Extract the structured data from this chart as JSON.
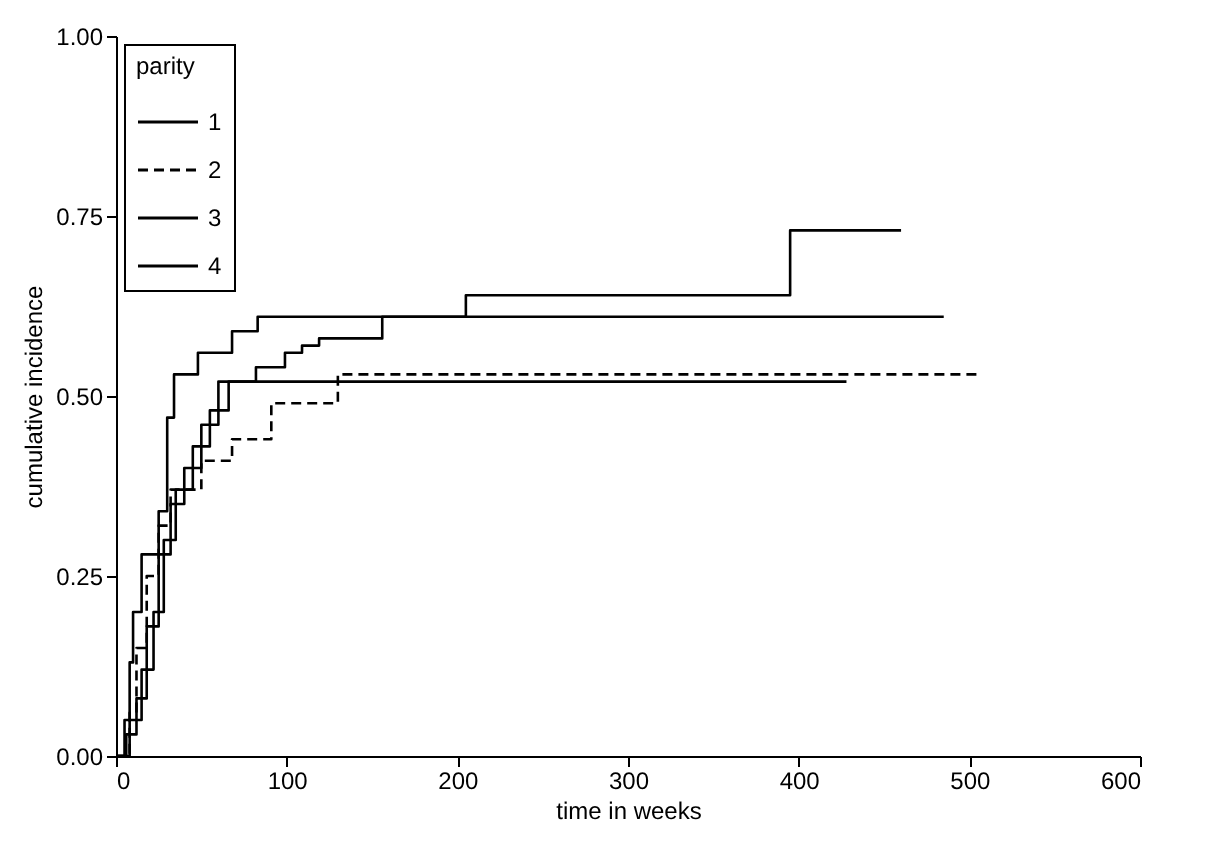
{
  "chart_data": {
    "type": "step",
    "xlabel": "time in weeks",
    "ylabel": "cumulative incidence",
    "legend_title": "parity",
    "legend": "top left",
    "grid": false,
    "xlim": [
      0,
      600
    ],
    "xticks": [
      0,
      100,
      200,
      300,
      400,
      500,
      600
    ],
    "ylim": [
      0,
      1
    ],
    "yticks": [
      {
        "value": 0,
        "label": "0.00"
      },
      {
        "value": 0.25,
        "label": "0.25"
      },
      {
        "value": 0.5,
        "label": "0.50"
      },
      {
        "value": 0.75,
        "label": "0.75"
      },
      {
        "value": 1,
        "label": "1.00"
      }
    ],
    "series": [
      {
        "name": "1",
        "color": "#000000",
        "line_style": "solid",
        "x": [
          0,
          5,
          8,
          10,
          15,
          25,
          30,
          34,
          48,
          68,
          83,
          485
        ],
        "values": [
          0,
          0.05,
          0.13,
          0.2,
          0.28,
          0.34,
          0.47,
          0.53,
          0.56,
          0.59,
          0.61,
          0.61
        ]
      },
      {
        "name": "2",
        "color": "#000000",
        "line_style": "dashed",
        "x": [
          0,
          8,
          12,
          18,
          25,
          32,
          50,
          68,
          91,
          130,
          505
        ],
        "values": [
          0,
          0.06,
          0.15,
          0.25,
          0.32,
          0.37,
          0.41,
          0.44,
          0.49,
          0.53,
          0.53
        ]
      },
      {
        "name": "3",
        "color": "#000000",
        "line_style": "solid",
        "x": [
          0,
          8,
          15,
          22,
          28,
          35,
          45,
          55,
          66,
          82,
          99,
          109,
          119,
          156,
          205,
          395,
          460
        ],
        "values": [
          0,
          0.05,
          0.12,
          0.2,
          0.3,
          0.37,
          0.43,
          0.48,
          0.52,
          0.54,
          0.56,
          0.57,
          0.58,
          0.61,
          0.64,
          0.73,
          0.73
        ]
      },
      {
        "name": "4",
        "color": "#000000",
        "line_style": "solid",
        "x": [
          0,
          6,
          12,
          18,
          25,
          32,
          40,
          50,
          60,
          428
        ],
        "values": [
          0,
          0.03,
          0.08,
          0.18,
          0.28,
          0.35,
          0.4,
          0.46,
          0.52,
          0.52
        ]
      }
    ]
  }
}
